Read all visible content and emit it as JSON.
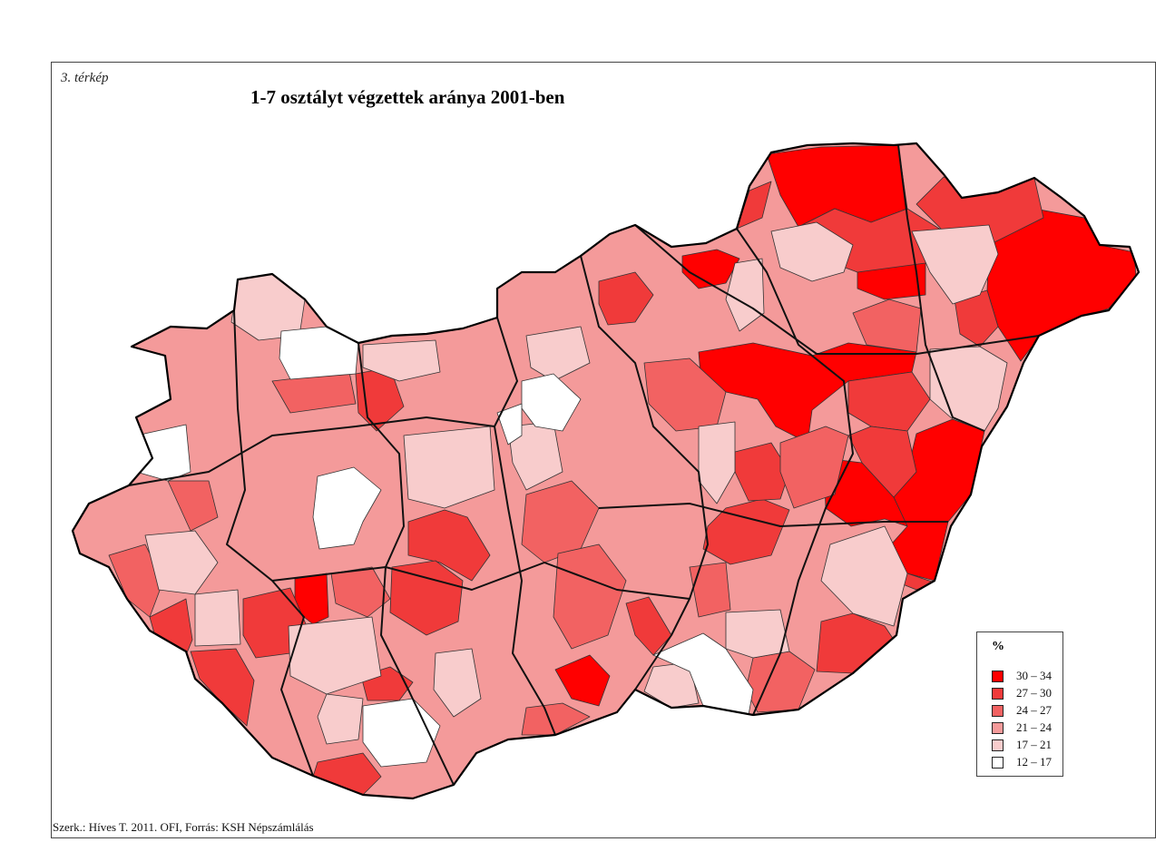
{
  "map_label": "3. térkép",
  "title": "1-7 osztályt végzettek aránya 2001-ben",
  "credit": "Szerk.: Híves T. 2011. OFI, Forrás: KSH Népszámlálás",
  "legend": {
    "title": "%",
    "classes": [
      {
        "label": "30 – 34",
        "color": "#ff0000"
      },
      {
        "label": "27 – 30",
        "color": "#f03a3a"
      },
      {
        "label": "24 – 27",
        "color": "#f26262"
      },
      {
        "label": "21 – 24",
        "color": "#f49a9a"
      },
      {
        "label": "17 – 21",
        "color": "#f8cccc"
      },
      {
        "label": "12 – 17",
        "color": "#ffffff"
      }
    ]
  }
}
